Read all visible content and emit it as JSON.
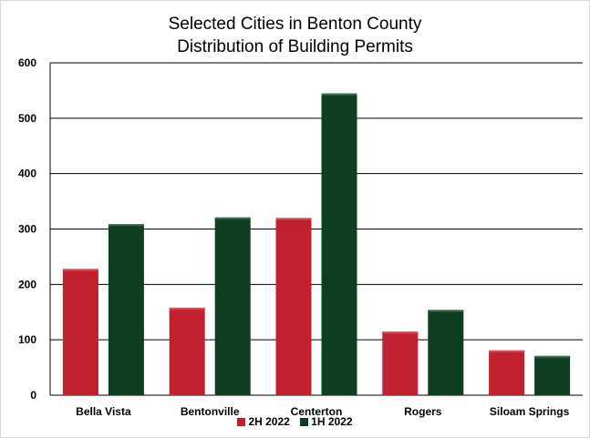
{
  "chart_data": {
    "type": "bar",
    "title": "Selected Cities in Benton County",
    "subtitle": "Distribution of Building Permits",
    "categories": [
      "Bella Vista",
      "Bentonville",
      "Centerton",
      "Rogers",
      "Siloam Springs"
    ],
    "series": [
      {
        "name": "2H 2022",
        "color": "#c0212e",
        "values": [
          228,
          158,
          320,
          115,
          81
        ]
      },
      {
        "name": "1H 2022",
        "color": "#0f3d1f",
        "values": [
          309,
          321,
          545,
          154,
          71
        ]
      }
    ],
    "ylim": [
      0,
      600
    ],
    "yticks": [
      "0",
      "100",
      "200",
      "300",
      "400",
      "500",
      "600"
    ],
    "grid": true,
    "legend_position": "bottom"
  }
}
